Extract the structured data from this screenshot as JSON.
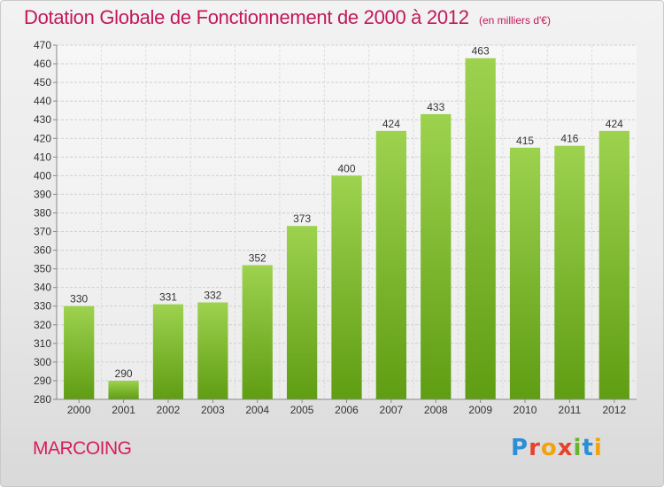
{
  "header": {
    "title": "Dotation Globale de Fonctionnement de 2000 à 2012",
    "subtitle": "(en milliers d'€)"
  },
  "footer": {
    "place": "MARCOING",
    "logo": "Proxiti",
    "logo_colors": [
      "#2a8fd6",
      "#e8412c",
      "#f2a20c",
      "#e8412c",
      "#6ab42d",
      "#2a8fd6",
      "#f2a20c"
    ]
  },
  "chart_data": {
    "type": "bar",
    "title": "Dotation Globale de Fonctionnement de 2000 à 2012",
    "subtitle": "(en milliers d'€)",
    "categories": [
      "2000",
      "2001",
      "2002",
      "2003",
      "2004",
      "2005",
      "2006",
      "2007",
      "2008",
      "2009",
      "2010",
      "2011",
      "2012"
    ],
    "values": [
      330,
      290,
      331,
      332,
      352,
      373,
      400,
      424,
      433,
      463,
      415,
      416,
      424
    ],
    "ylim": [
      280,
      470
    ],
    "ytick_step": 10,
    "grid": true,
    "bar_color_light": "#9dd24f",
    "bar_color_dark": "#5f9d13",
    "label_color": "#333333"
  }
}
